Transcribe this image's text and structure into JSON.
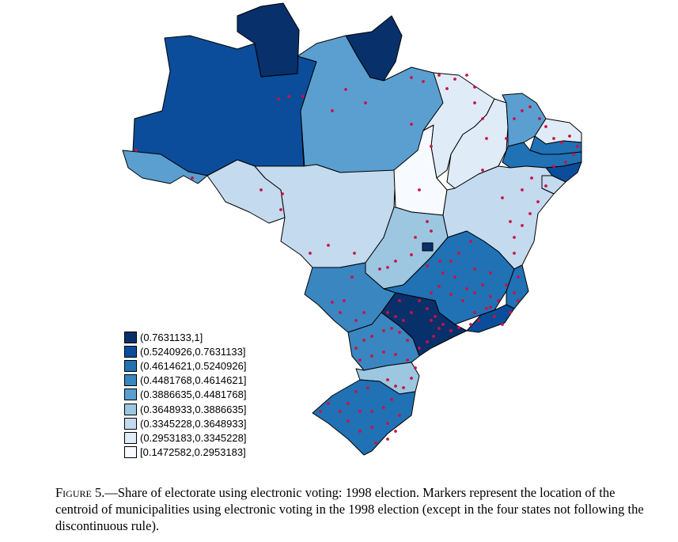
{
  "legend": {
    "items": [
      {
        "label": "(0.7631133,1]",
        "color": "#08306b"
      },
      {
        "label": "(0.5240926,0.7631133]",
        "color": "#0b4d9a"
      },
      {
        "label": "(0.4614621,0.5240926]",
        "color": "#2171b5"
      },
      {
        "label": "(0.4481768,0.4614621]",
        "color": "#3a86c0"
      },
      {
        "label": "(0.3886635,0.4481768]",
        "color": "#5a9fd0"
      },
      {
        "label": "(0.3648933,0.3886635]",
        "color": "#9dc6e1"
      },
      {
        "label": "(0.3345228,0.3648933]",
        "color": "#c4daee"
      },
      {
        "label": "(0.2953183,0.3345228]",
        "color": "#dfebf7"
      },
      {
        "label": "[0.1472582,0.2953183]",
        "color": "#f7fbff"
      }
    ]
  },
  "caption": {
    "figure_label": "Figure 5",
    "text": ".—Share of electorate using electronic voting: 1998 election. Markers represent the location of the centroid of municipalities using electronic voting in the 1998 election (except in the four states not following the discontinuous rule)."
  },
  "map": {
    "marker_color": "#cc1144",
    "states": [
      {
        "id": "RR",
        "class": 0
      },
      {
        "id": "AP",
        "class": 0
      },
      {
        "id": "AM",
        "class": 1
      },
      {
        "id": "AC",
        "class": 4
      },
      {
        "id": "PA",
        "class": 4
      },
      {
        "id": "RO",
        "class": 6
      },
      {
        "id": "MT",
        "class": 6
      },
      {
        "id": "TO",
        "class": 8
      },
      {
        "id": "MA",
        "class": 7
      },
      {
        "id": "PI",
        "class": 7
      },
      {
        "id": "CE",
        "class": 4
      },
      {
        "id": "RN",
        "class": 7
      },
      {
        "id": "PB",
        "class": 2
      },
      {
        "id": "PE",
        "class": 2
      },
      {
        "id": "AL",
        "class": 1
      },
      {
        "id": "SE",
        "class": 6
      },
      {
        "id": "BA",
        "class": 6
      },
      {
        "id": "GO",
        "class": 5
      },
      {
        "id": "DF",
        "class": 0
      },
      {
        "id": "MS",
        "class": 3
      },
      {
        "id": "MG",
        "class": 2
      },
      {
        "id": "ES",
        "class": 2
      },
      {
        "id": "RJ",
        "class": 1
      },
      {
        "id": "SP",
        "class": 0
      },
      {
        "id": "PR",
        "class": 3
      },
      {
        "id": "SC",
        "class": 5
      },
      {
        "id": "RS",
        "class": 2
      }
    ]
  }
}
